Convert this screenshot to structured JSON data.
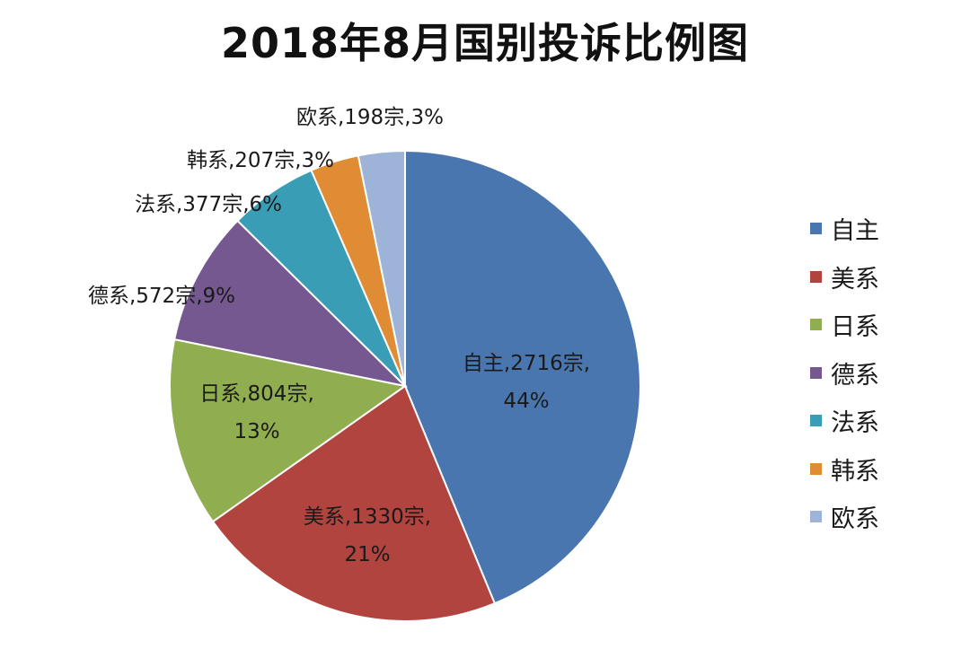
{
  "chart_data": {
    "type": "pie",
    "title": "2018年8月国别投诉比例图",
    "categories": [
      "自主",
      "美系",
      "日系",
      "德系",
      "法系",
      "韩系",
      "欧系"
    ],
    "values": [
      2716,
      1330,
      804,
      572,
      377,
      207,
      198
    ],
    "percent": [
      "44%",
      "21%",
      "13%",
      "9%",
      "6%",
      "3%",
      "3%"
    ],
    "colors": [
      "#4a76b0",
      "#b1443f",
      "#90ad50",
      "#74588f",
      "#3a9db6",
      "#e08c35",
      "#9db4d8"
    ],
    "data_labels": [
      [
        "自主,2716宗,",
        "44%"
      ],
      [
        "美系,1330宗,",
        "21%"
      ],
      [
        "日系,804宗,",
        "13%"
      ],
      [
        "德系,572宗,9%"
      ],
      [
        "法系,377宗,6%"
      ],
      [
        "韩系,207宗,3%"
      ],
      [
        "欧系,198宗,3%"
      ]
    ],
    "legend_position": "right",
    "unit": "宗"
  }
}
